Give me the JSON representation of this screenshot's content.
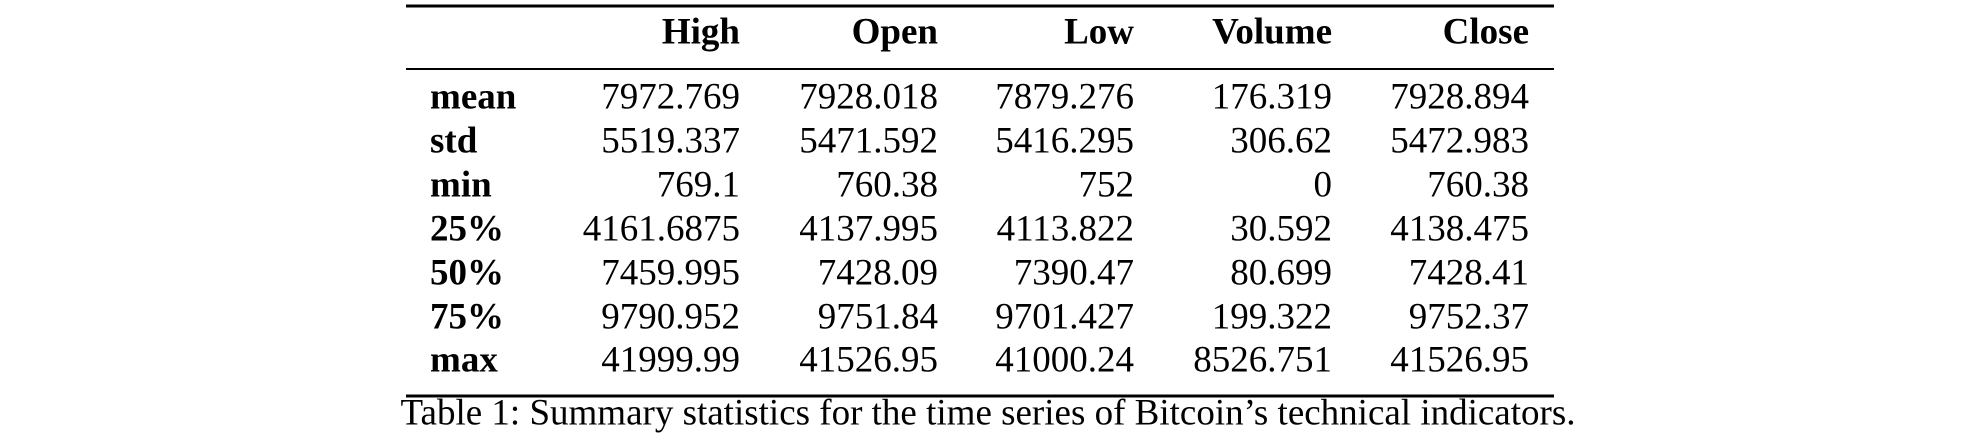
{
  "table": {
    "header": [
      "High",
      "Open",
      "Low",
      "Volume",
      "Close"
    ],
    "rows": [
      [
        "mean",
        "7972.769",
        "7928.018",
        "7879.276",
        "176.319",
        "7928.894"
      ],
      [
        "std",
        "5519.337",
        "5471.592",
        "5416.295",
        "306.62",
        "5472.983"
      ],
      [
        "min",
        "769.1",
        "760.38",
        "752",
        "0",
        "760.38"
      ],
      [
        "25%",
        "4161.6875",
        "4137.995",
        "4113.822",
        "30.592",
        "4138.475"
      ],
      [
        "50%",
        "7459.995",
        "7428.09",
        "7390.47",
        "80.699",
        "7428.41"
      ],
      [
        "75%",
        "9790.952",
        "9751.84",
        "9701.427",
        "199.322",
        "9752.37"
      ],
      [
        "max",
        "41999.99",
        "41526.95",
        "41000.24",
        "8526.751",
        "41526.95"
      ]
    ],
    "caption": "Table 1: Summary statistics for the time series of Bitcoin’s technical indicators."
  }
}
